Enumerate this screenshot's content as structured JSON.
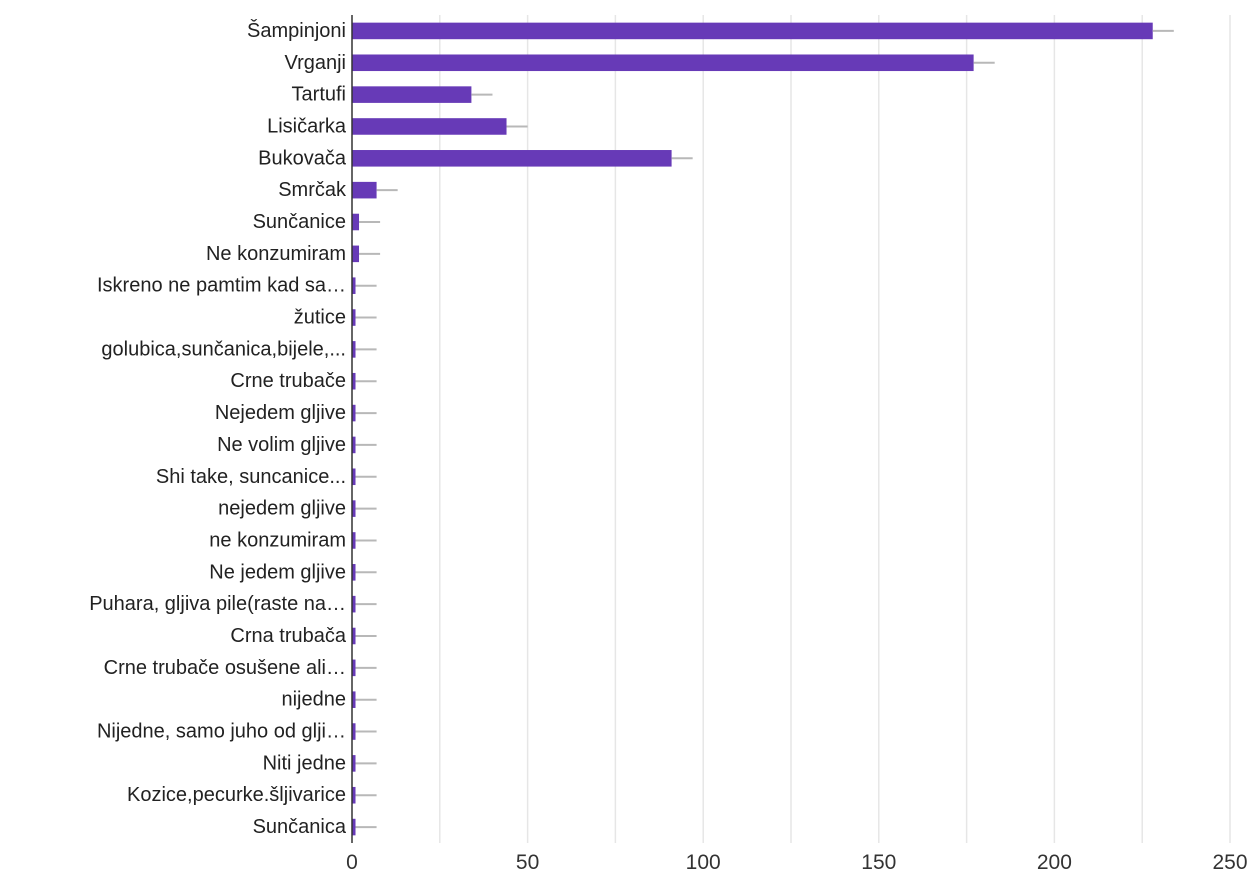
{
  "chart_data": {
    "type": "bar",
    "orientation": "horizontal",
    "categories": [
      "Šampinjoni",
      "Vrganji",
      "Tartufi",
      "Lisičarka",
      "Bukovača",
      "Smrčak",
      "Sunčanice",
      "Ne konzumiram",
      "Iskreno ne pamtim kad sa…",
      "žutice",
      "golubica,sunčanica,bijele,...",
      "Crne trubače",
      "Nejedem gljive",
      "Ne volim gljive",
      "Shi take, suncanice...",
      "nejedem gljive",
      "ne konzumiram",
      "Ne jedem gljive",
      "Puhara, gljiva pile(raste na…",
      "Crna trubača",
      "Crne trubače osušene ali…",
      "nijedne",
      "Nijedne, samo juho od glji…",
      "Niti jedne",
      "Kozice,pecurke.šljivarice",
      "Sunčanica"
    ],
    "values": [
      228,
      177,
      34,
      44,
      91,
      7,
      2,
      2,
      1,
      1,
      1,
      1,
      1,
      1,
      1,
      1,
      1,
      1,
      1,
      1,
      1,
      1,
      1,
      1,
      1,
      1
    ],
    "error": [
      6,
      6,
      6,
      6,
      6,
      6,
      6,
      6,
      6,
      6,
      6,
      6,
      6,
      6,
      6,
      6,
      6,
      6,
      6,
      6,
      6,
      6,
      6,
      6,
      6,
      6
    ],
    "xticks": [
      0,
      50,
      100,
      150,
      200,
      250
    ],
    "xlim": [
      0,
      250
    ],
    "title": "",
    "xlabel": "",
    "ylabel": "",
    "grid": "vertical",
    "colors": {
      "bar": "#673ab7",
      "error_bar": "#b8b8b8",
      "grid": "#e6e6e6",
      "axis": "#333333"
    }
  }
}
